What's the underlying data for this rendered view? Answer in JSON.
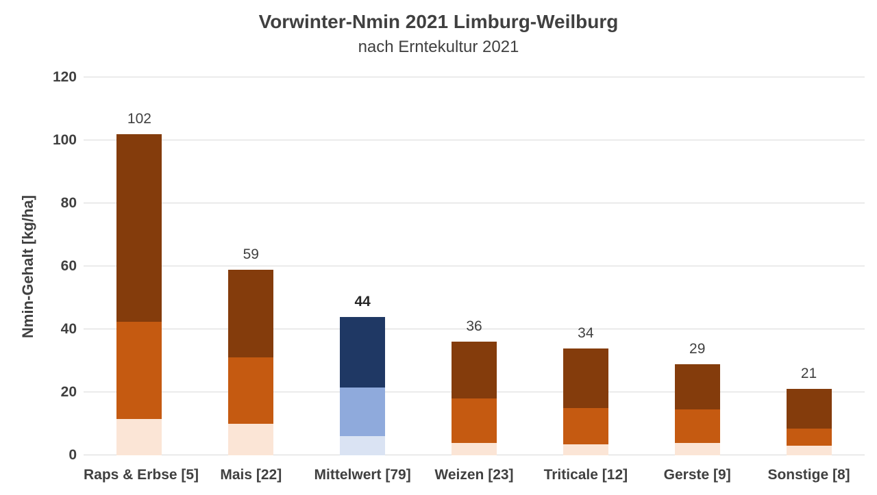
{
  "chart_data": {
    "type": "bar",
    "stacked": true,
    "title": "Vorwinter-Nmin 2021 Limburg-Weilburg",
    "subtitle": "nach Erntekultur 2021",
    "xlabel": "",
    "ylabel": "Nmin-Gehalt [kg/ha]",
    "ylim": [
      0,
      120
    ],
    "yticks": [
      0,
      20,
      40,
      60,
      80,
      100,
      120
    ],
    "grid": true,
    "legend": "none",
    "categories": [
      "Raps & Erbse [5]",
      "Mais [22]",
      "Mittelwert [79]",
      "Weizen [23]",
      "Triticale [12]",
      "Gerste [9]",
      "Sonstige [8]"
    ],
    "totals": [
      102,
      59,
      44,
      36,
      34,
      29,
      21
    ],
    "emphasized_category": "Mittelwert [79]",
    "series": [
      {
        "name": "lower-segment",
        "values": [
          11.5,
          10,
          6,
          4,
          3.5,
          4,
          3
        ]
      },
      {
        "name": "middle-segment",
        "values": [
          31,
          21,
          15.5,
          14,
          11.5,
          10.5,
          5.5
        ]
      },
      {
        "name": "upper-segment",
        "values": [
          59.5,
          28,
          22.5,
          18,
          19,
          14.5,
          12.5
        ]
      }
    ],
    "palettes": {
      "orange": [
        "#FBE5D6",
        "#C55A11",
        "#843C0C"
      ],
      "blue": [
        "#DAE3F3",
        "#8FAADC",
        "#1F3864"
      ]
    },
    "bar_palettes": [
      "orange",
      "orange",
      "blue",
      "orange",
      "orange",
      "orange",
      "orange"
    ],
    "colors": {
      "gridline": "#D9D9D9",
      "text": "#404040",
      "emphasized_label": "#262626",
      "background": "#FFFFFF"
    }
  }
}
